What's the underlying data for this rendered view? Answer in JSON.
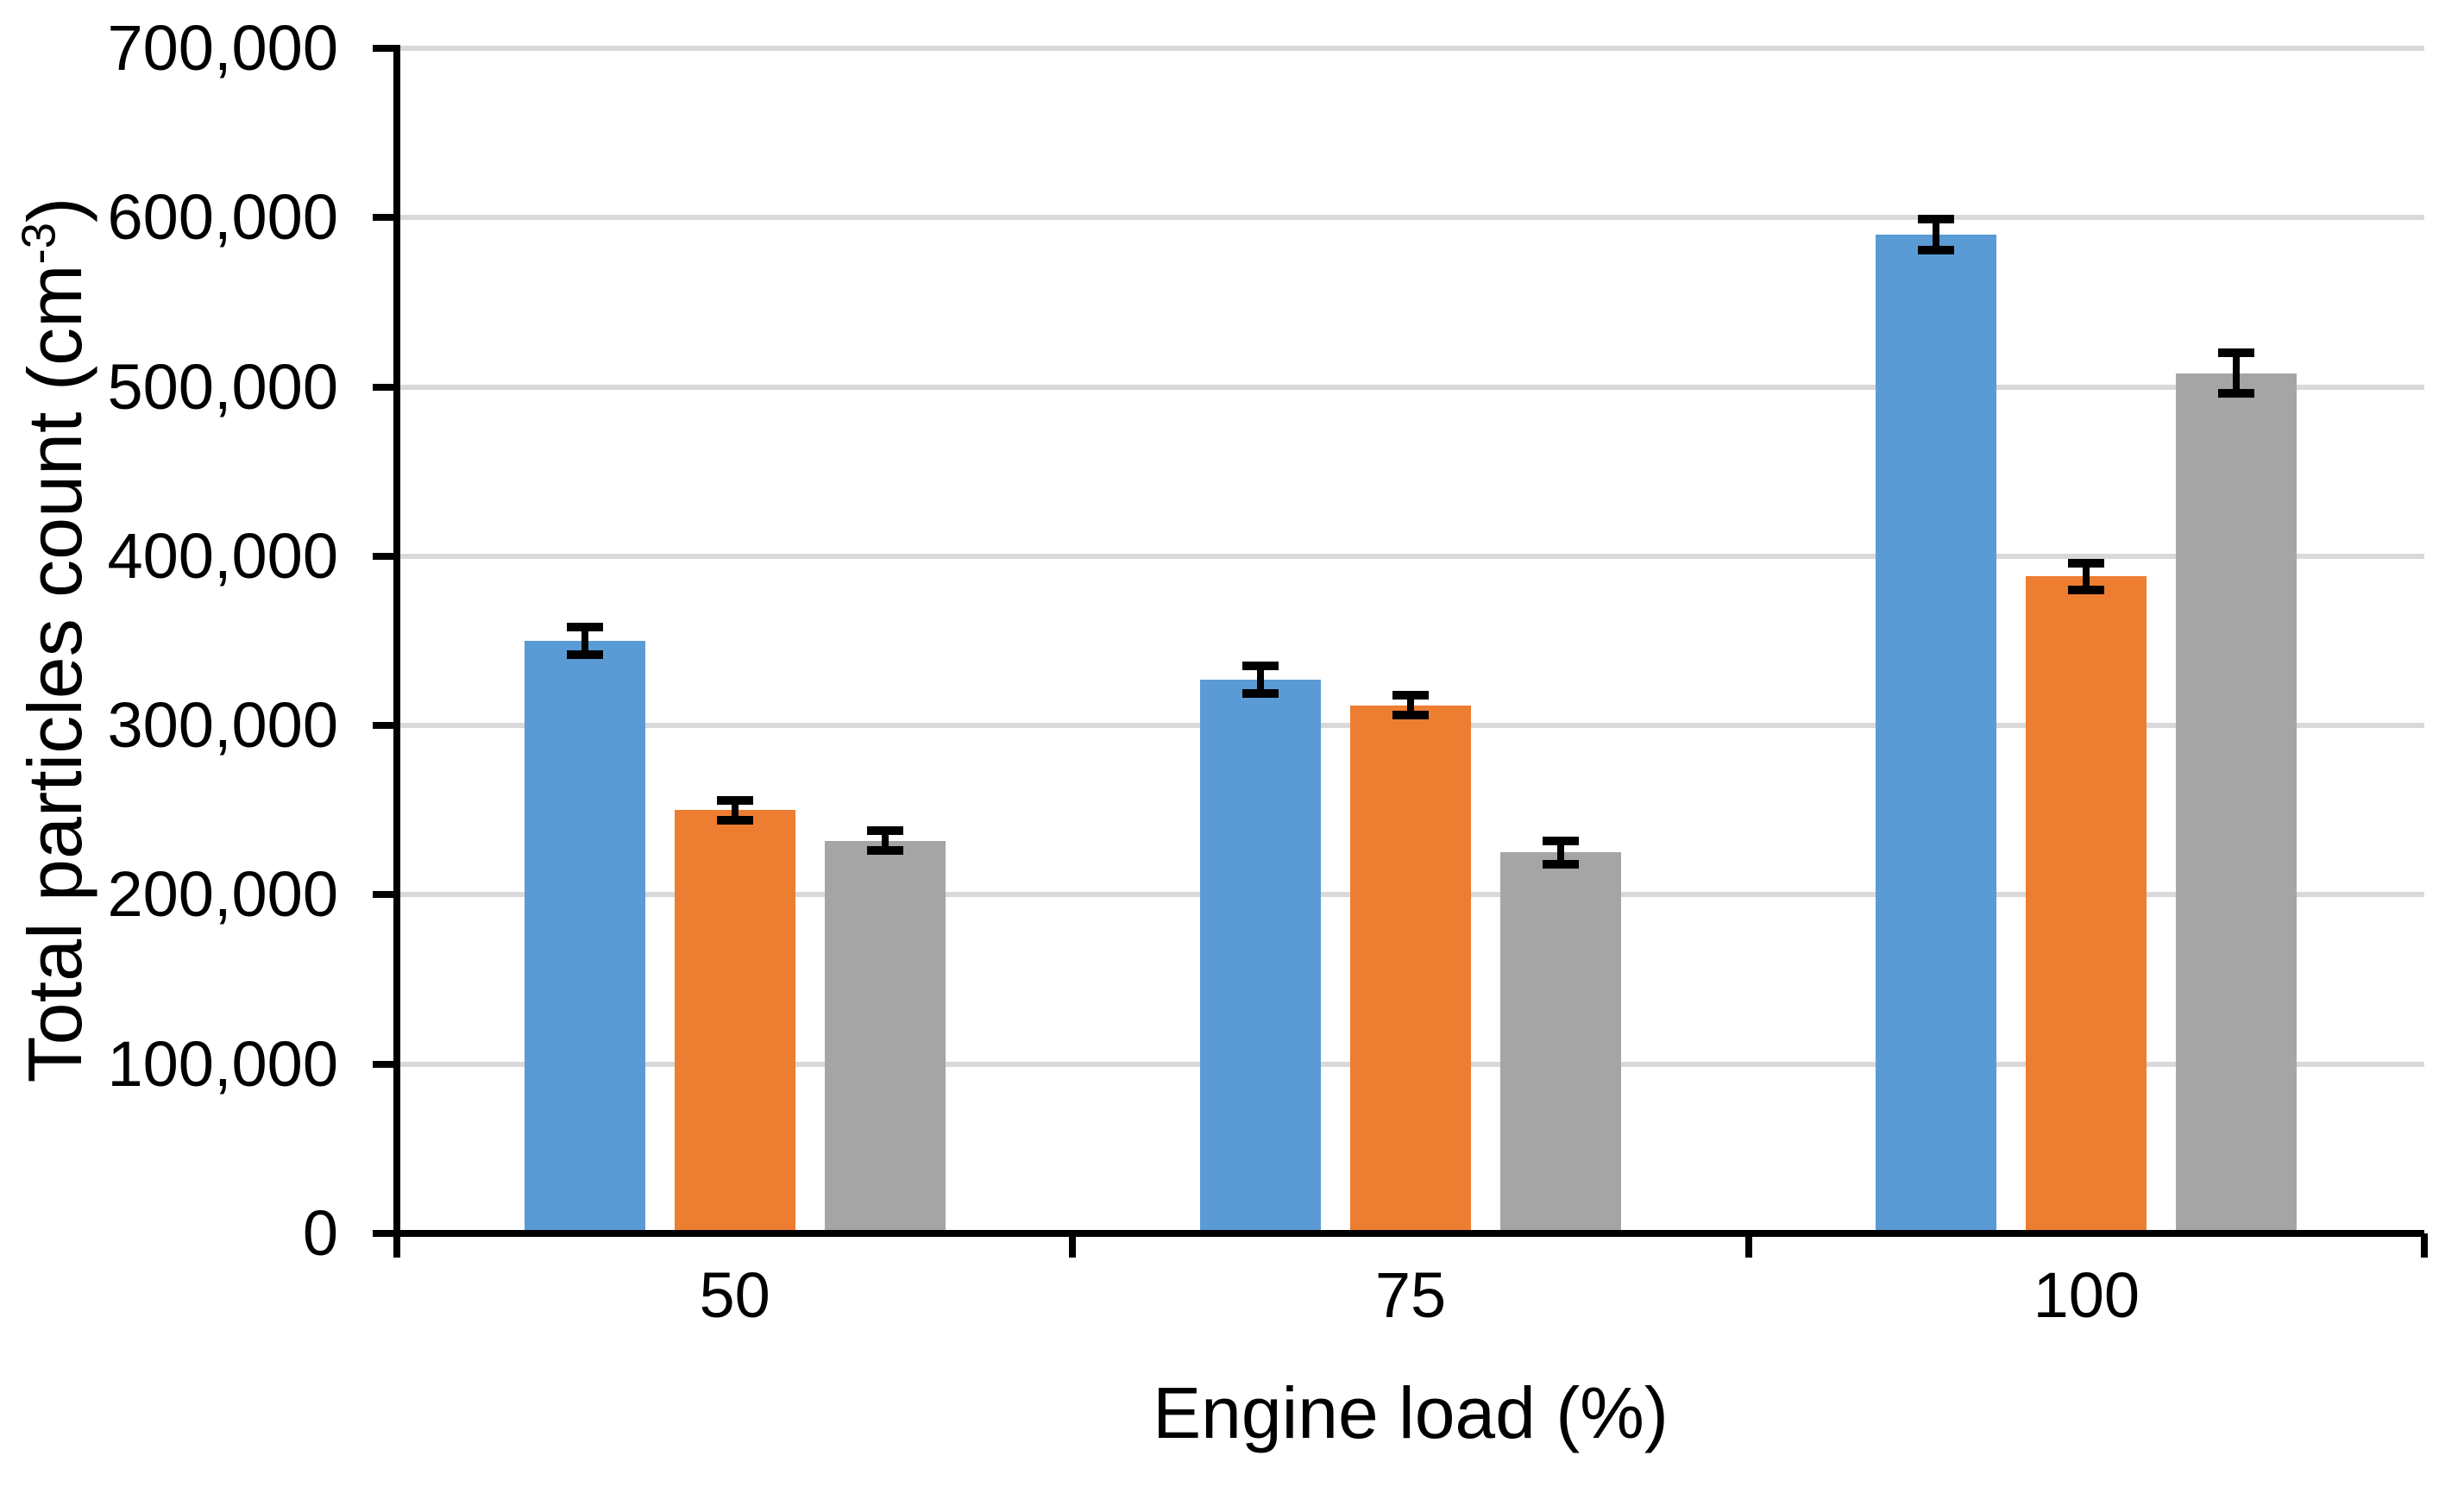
{
  "chart_data": {
    "type": "bar",
    "title": "",
    "xlabel": "Engine load (%)",
    "ylabel": "Total particles count (cm-3)",
    "ylabel_parts": {
      "main": "Total particles count (cm",
      "sup": "-3",
      "close": ")"
    },
    "categories": [
      "50",
      "75",
      "100"
    ],
    "series": [
      {
        "color_name": "blue",
        "color": "#5B9BD5",
        "values": [
          350000,
          327000,
          590000
        ],
        "errors": [
          8000,
          8000,
          9000
        ]
      },
      {
        "color_name": "orange",
        "color": "#ED7D31",
        "values": [
          250000,
          312000,
          388000
        ],
        "errors": [
          6000,
          6000,
          8000
        ]
      },
      {
        "color_name": "gray",
        "color": "#A5A5A5",
        "values": [
          232000,
          225000,
          508000
        ],
        "errors": [
          6000,
          7000,
          12000
        ]
      }
    ],
    "y_axis": {
      "min": 0,
      "max": 700000,
      "tick_step": 100000,
      "tick_labels": [
        "0",
        "100,000",
        "200,000",
        "300,000",
        "400,000",
        "500,000",
        "600,000",
        "700,000"
      ]
    },
    "legend": "none",
    "grid": {
      "show": true,
      "color": "#D9D9D9"
    },
    "axis_color": "#000000"
  }
}
